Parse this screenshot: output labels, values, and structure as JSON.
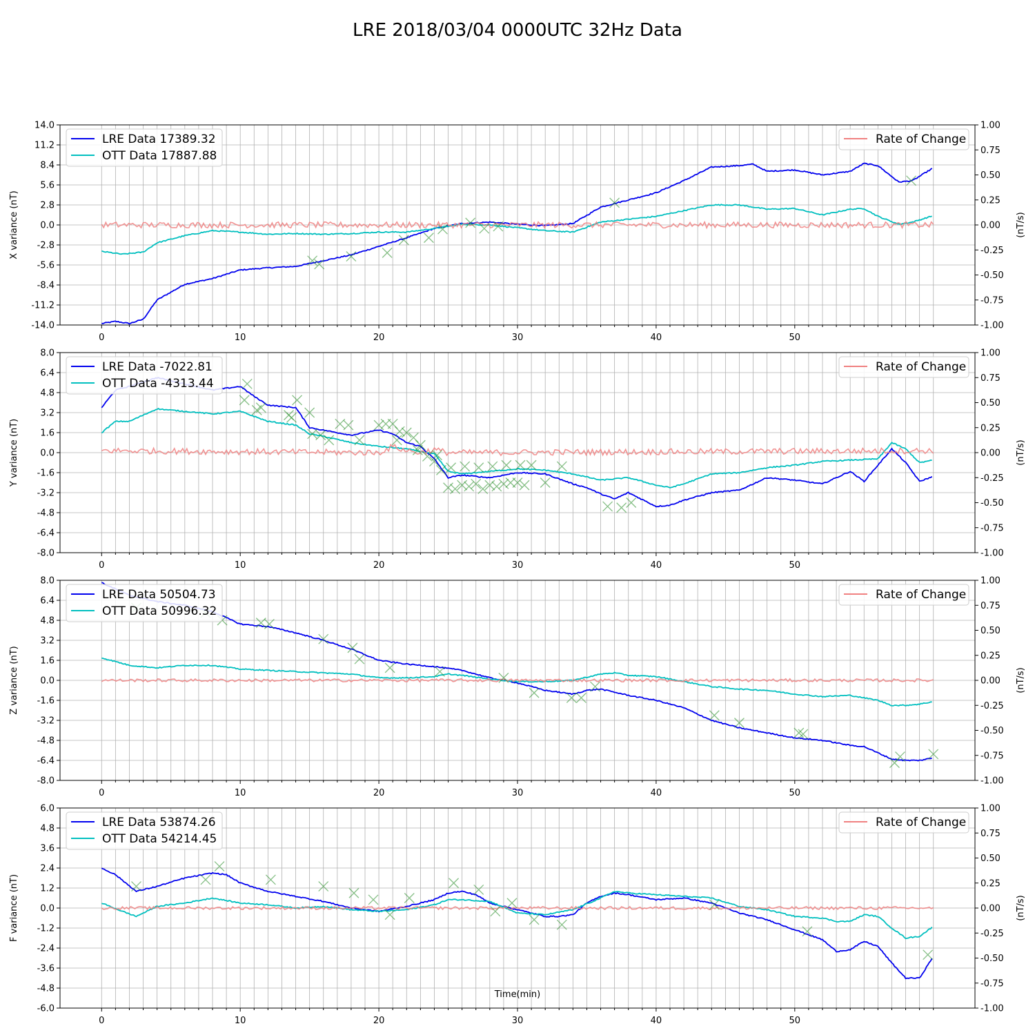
{
  "figure": {
    "title": "LRE 2018/03/04 0000UTC 32Hz Data",
    "xlabel": "Time(min)"
  },
  "chart_data": [
    {
      "type": "line",
      "ylabel": "X variance (nT)",
      "y2label": "(nT/s)",
      "xlim": [
        -3,
        63
      ],
      "xticks": [
        0,
        10,
        20,
        30,
        40,
        50
      ],
      "ylim": [
        -14.0,
        14.0
      ],
      "yticks": [
        "14.0",
        "11.2",
        "8.4",
        "5.6",
        "2.8",
        "0.0",
        "-2.8",
        "-5.6",
        "-8.4",
        "-11.2",
        "-14.0"
      ],
      "y2lim": [
        -1.0,
        1.0
      ],
      "y2ticks": [
        "1.00",
        "0.75",
        "0.50",
        "0.25",
        "0.00",
        "-0.25",
        "-0.50",
        "-0.75",
        "-1.00"
      ],
      "grid": true,
      "legend_left_position": "upper-left",
      "legend_right_position": "upper-right",
      "series": [
        {
          "name": "LRE Data 17389.32",
          "color": "#0000ee",
          "x": [
            0,
            1,
            2,
            3,
            4,
            6,
            8,
            10,
            12,
            14,
            16,
            18,
            20,
            22,
            24,
            26,
            28,
            30,
            32,
            34,
            36,
            38,
            40,
            42,
            44,
            46,
            47,
            48,
            50,
            52,
            54,
            55,
            56,
            57.5,
            58.5,
            60
          ],
          "y": [
            -13.8,
            -13.5,
            -13.8,
            -13.2,
            -10.5,
            -8.3,
            -7.5,
            -6.3,
            -6.0,
            -5.8,
            -5.0,
            -4.2,
            -3.0,
            -1.8,
            -0.5,
            0.2,
            0.4,
            0.1,
            -0.1,
            0.2,
            2.5,
            3.5,
            4.5,
            6.2,
            8.1,
            8.3,
            8.5,
            7.5,
            7.7,
            7.0,
            7.5,
            8.6,
            8.3,
            6.0,
            6.2,
            8.0
          ]
        },
        {
          "name": "OTT Data 17887.88",
          "color": "#00bfbf",
          "x": [
            0,
            1.5,
            3,
            4,
            6,
            8,
            10,
            12,
            14,
            16,
            18,
            20,
            22,
            24,
            26,
            28,
            30,
            32,
            34,
            36,
            38,
            40,
            42,
            44,
            46,
            48,
            50,
            52,
            54,
            55,
            56,
            57.5,
            58.5,
            60
          ],
          "y": [
            -3.7,
            -4.1,
            -3.8,
            -2.5,
            -1.5,
            -0.8,
            -1.0,
            -1.3,
            -1.2,
            -1.3,
            -1.2,
            -1.0,
            -1.0,
            -0.5,
            0.1,
            0.0,
            -0.4,
            -0.8,
            -1.0,
            0.4,
            0.8,
            1.2,
            2.0,
            2.8,
            2.8,
            2.2,
            2.3,
            1.4,
            2.2,
            2.3,
            1.2,
            0.1,
            0.4,
            1.3
          ]
        },
        {
          "name": "Rate of Change",
          "axis": "right",
          "color": "#f08080",
          "x": [
            0,
            60
          ],
          "y": [
            0.0,
            0.0
          ],
          "noise": 0.03
        }
      ],
      "markers": {
        "color": "#228b22",
        "x": [
          15.2,
          15.7,
          18,
          20.6,
          21.8,
          23.6,
          24.6,
          26.6,
          27.6,
          28.6,
          37,
          58.4
        ],
        "y": [
          -5.0,
          -5.5,
          -4.4,
          -3.9,
          -2.1,
          -1.8,
          -0.6,
          0.3,
          -0.5,
          -0.2,
          3.1,
          6.2
        ]
      }
    },
    {
      "type": "line",
      "ylabel": "Y variance (nT)",
      "y2label": "(nT/s)",
      "xlim": [
        -3,
        63
      ],
      "xticks": [
        0,
        10,
        20,
        30,
        40,
        50
      ],
      "ylim": [
        -8.0,
        8.0
      ],
      "yticks": [
        "8.0",
        "6.4",
        "4.8",
        "3.2",
        "1.6",
        "0.0",
        "-1.6",
        "-3.2",
        "-4.8",
        "-6.4",
        "-8.0"
      ],
      "y2lim": [
        -1.0,
        1.0
      ],
      "y2ticks": [
        "1.00",
        "0.75",
        "0.50",
        "0.25",
        "0.00",
        "-0.25",
        "-0.50",
        "-0.75",
        "-1.00"
      ],
      "grid": true,
      "legend_left_position": "upper-left",
      "legend_right_position": "upper-right",
      "series": [
        {
          "name": "LRE Data -7022.81",
          "color": "#0000ee",
          "x": [
            0,
            1,
            2,
            4,
            6,
            8,
            10,
            11,
            12,
            14,
            15,
            16,
            18,
            20,
            21,
            22,
            23,
            24,
            25,
            26,
            28,
            30,
            32,
            34,
            35,
            36,
            37,
            38,
            40,
            41,
            42,
            44,
            46,
            48,
            50,
            52,
            54,
            55,
            56,
            57,
            58,
            59,
            60
          ],
          "y": [
            3.6,
            5.0,
            5.3,
            6.0,
            5.5,
            5.0,
            5.3,
            4.5,
            3.8,
            3.6,
            2.0,
            1.8,
            1.4,
            1.8,
            1.5,
            0.8,
            0.5,
            -0.5,
            -2.0,
            -1.8,
            -2.0,
            -1.6,
            -1.7,
            -2.5,
            -2.8,
            -3.3,
            -3.7,
            -3.2,
            -4.3,
            -4.2,
            -3.8,
            -3.2,
            -3.0,
            -2.0,
            -2.2,
            -2.5,
            -1.5,
            -2.3,
            -1.0,
            0.3,
            -0.8,
            -2.3,
            -1.9
          ]
        },
        {
          "name": "OTT Data -4313.44",
          "color": "#00bfbf",
          "x": [
            0,
            1,
            2,
            3,
            4,
            6,
            8,
            10,
            11,
            12,
            14,
            15,
            16,
            18,
            20,
            22,
            24,
            25,
            26,
            28,
            30,
            32,
            34,
            36,
            38,
            40,
            41,
            42,
            44,
            46,
            48,
            50,
            52,
            54,
            56,
            57,
            58,
            59,
            60
          ],
          "y": [
            1.6,
            2.5,
            2.5,
            3.0,
            3.5,
            3.3,
            3.1,
            3.3,
            2.9,
            2.5,
            2.2,
            1.5,
            1.3,
            0.8,
            0.5,
            0.3,
            -0.1,
            -1.5,
            -1.7,
            -1.5,
            -1.3,
            -1.4,
            -1.7,
            -2.2,
            -2.0,
            -2.6,
            -2.8,
            -2.5,
            -1.7,
            -1.6,
            -1.2,
            -1.0,
            -0.7,
            -0.6,
            -0.5,
            0.8,
            0.3,
            -0.8,
            -0.6
          ]
        },
        {
          "name": "Rate of Change",
          "axis": "right",
          "color": "#f08080",
          "x": [
            0,
            20,
            21,
            22,
            23,
            24,
            25,
            26,
            60
          ],
          "y": [
            0.02,
            0.0,
            0.06,
            0.02,
            0.0,
            0.03,
            0.0,
            0.0,
            0.02
          ],
          "noise": 0.03
        }
      ],
      "markers": {
        "color": "#228b22",
        "x": [
          10.5,
          11.5,
          13.7,
          14.1,
          15.0,
          15.8,
          16.4,
          17.2,
          17.8,
          18.6,
          20.0,
          20.5,
          21.0,
          21.5,
          22.0,
          22.5,
          23.0,
          23.5,
          24.0,
          24.5,
          25.0,
          25.5,
          26.0,
          26.5,
          27.0,
          27.5,
          28.0,
          28.5,
          29.0,
          29.5,
          30.0,
          30.5,
          31.0,
          32.0,
          33.2,
          36.5,
          37.5,
          38.2,
          10.3,
          11.2,
          13.5,
          15.2,
          21.3,
          22.8,
          24.2,
          25.2,
          26.2,
          27.2,
          28.2,
          29.2,
          30.2
        ],
        "y": [
          5.5,
          3.6,
          2.8,
          4.2,
          3.2,
          1.4,
          1.0,
          2.3,
          2.2,
          1.0,
          2.2,
          2.3,
          2.3,
          1.7,
          1.6,
          1.2,
          0.6,
          -0.3,
          -0.7,
          -1.4,
          -2.8,
          -2.9,
          -2.6,
          -2.7,
          -2.5,
          -2.9,
          -2.6,
          -2.7,
          -2.5,
          -2.4,
          -2.4,
          -2.6,
          -1.0,
          -2.4,
          -1.1,
          -4.3,
          -4.4,
          -4.0,
          4.2,
          3.4,
          3.0,
          1.5,
          1.0,
          0.2,
          -0.2,
          -1.2,
          -1.1,
          -1.2,
          -1.1,
          -1.0,
          -1.0
        ]
      }
    },
    {
      "type": "line",
      "ylabel": "Z variance (nT)",
      "y2label": "(nT/s)",
      "xlim": [
        -3,
        63
      ],
      "xticks": [
        0,
        10,
        20,
        30,
        40,
        50
      ],
      "ylim": [
        -8.0,
        8.0
      ],
      "yticks": [
        "8.0",
        "6.4",
        "4.8",
        "3.2",
        "1.6",
        "0.0",
        "-1.6",
        "-3.2",
        "-4.8",
        "-6.4",
        "-8.0"
      ],
      "y2lim": [
        -1.0,
        1.0
      ],
      "y2ticks": [
        "1.00",
        "0.75",
        "0.50",
        "0.25",
        "0.00",
        "-0.25",
        "-0.50",
        "-0.75",
        "-1.00"
      ],
      "grid": true,
      "legend_left_position": "upper-left",
      "legend_right_position": "upper-right",
      "series": [
        {
          "name": "LRE Data 50504.73",
          "color": "#0000ee",
          "x": [
            0,
            2,
            4,
            6,
            8,
            10,
            12,
            14,
            16,
            18,
            20,
            22,
            24,
            26,
            28,
            30,
            32,
            34,
            35,
            36,
            38,
            40,
            42,
            44,
            46,
            48,
            50,
            52,
            54,
            55,
            56,
            57,
            58,
            59,
            60
          ],
          "y": [
            7.8,
            6.8,
            6.3,
            6.0,
            5.5,
            4.5,
            4.3,
            3.8,
            3.2,
            2.5,
            1.6,
            1.3,
            1.1,
            0.8,
            0.2,
            -0.2,
            -0.8,
            -1.1,
            -0.8,
            -0.7,
            -1.2,
            -1.6,
            -2.2,
            -3.2,
            -3.8,
            -4.2,
            -4.6,
            -4.8,
            -5.2,
            -5.3,
            -5.8,
            -6.3,
            -6.4,
            -6.4,
            -6.2
          ]
        },
        {
          "name": "OTT Data 50996.32",
          "color": "#00bfbf",
          "x": [
            0,
            2,
            4,
            6,
            8,
            10,
            12,
            14,
            16,
            18,
            20,
            22,
            24,
            25,
            26,
            28,
            30,
            32,
            34,
            36,
            37,
            38,
            40,
            42,
            44,
            46,
            48,
            50,
            52,
            54,
            56,
            57,
            58,
            59,
            60
          ],
          "y": [
            1.8,
            1.2,
            1.0,
            1.2,
            1.2,
            0.9,
            0.8,
            0.7,
            0.6,
            0.5,
            0.2,
            0.2,
            0.3,
            0.5,
            0.4,
            0.1,
            -0.1,
            -0.1,
            0.0,
            0.5,
            0.6,
            0.4,
            0.3,
            -0.1,
            -0.5,
            -0.7,
            -0.8,
            -1.1,
            -1.3,
            -1.2,
            -1.6,
            -2.0,
            -2.0,
            -1.9,
            -1.7
          ]
        },
        {
          "name": "Rate of Change",
          "axis": "right",
          "color": "#f08080",
          "x": [
            0,
            60
          ],
          "y": [
            0.0,
            0.0
          ],
          "noise": 0.015
        }
      ],
      "markers": {
        "color": "#228b22",
        "x": [
          2.5,
          7.5,
          8.7,
          11.5,
          12.1,
          16.0,
          18.1,
          18.6,
          20.8,
          24.4,
          29.0,
          31.2,
          33.9,
          34.6,
          35.6,
          44.2,
          46.0,
          50.3,
          50.6,
          57.2,
          57.6,
          60
        ],
        "y": [
          5.8,
          5.4,
          4.8,
          4.6,
          4.5,
          3.3,
          2.6,
          1.7,
          1.0,
          0.7,
          0.2,
          -1.0,
          -1.4,
          -1.4,
          -0.5,
          -2.8,
          -3.4,
          -4.2,
          -4.3,
          -6.6,
          -6.1,
          -5.9
        ]
      }
    },
    {
      "type": "line",
      "ylabel": "F variance (nT)",
      "y2label": "(nT/s)",
      "xlim": [
        -3,
        63
      ],
      "xticks": [
        0,
        10,
        20,
        30,
        40,
        50
      ],
      "ylim": [
        -6.0,
        6.0
      ],
      "yticks": [
        "6.0",
        "4.8",
        "3.6",
        "2.4",
        "1.2",
        "0.0",
        "-1.2",
        "-2.4",
        "-3.6",
        "-4.8",
        "-6.0"
      ],
      "y2lim": [
        -1.0,
        1.0
      ],
      "y2ticks": [
        "1.00",
        "0.75",
        "0.50",
        "0.25",
        "0.00",
        "-0.25",
        "-0.50",
        "-0.75",
        "-1.00"
      ],
      "grid": true,
      "legend_left_position": "upper-left",
      "legend_right_position": "upper-right",
      "series": [
        {
          "name": "LRE Data 53874.26",
          "color": "#0000ee",
          "x": [
            0,
            1,
            2.5,
            4,
            6,
            8,
            9,
            10,
            12,
            14,
            16,
            18,
            20,
            22,
            24,
            25,
            26,
            27,
            28,
            30,
            32,
            33,
            34,
            35,
            36,
            37,
            38,
            40,
            42,
            44,
            46,
            48,
            50,
            52,
            53,
            54,
            55,
            56,
            57,
            58,
            59,
            60
          ],
          "y": [
            2.4,
            2.0,
            1.0,
            1.3,
            1.8,
            2.1,
            2.0,
            1.5,
            1.0,
            0.7,
            0.4,
            0.0,
            -0.2,
            0.1,
            0.5,
            0.9,
            1.0,
            0.8,
            0.3,
            -0.1,
            -0.5,
            -0.5,
            -0.4,
            0.3,
            0.7,
            0.9,
            0.8,
            0.5,
            0.6,
            0.3,
            -0.3,
            -0.7,
            -1.3,
            -1.9,
            -2.6,
            -2.5,
            -2.0,
            -2.3,
            -3.3,
            -4.2,
            -4.2,
            -2.9
          ]
        },
        {
          "name": "OTT Data 54214.45",
          "color": "#00bfbf",
          "x": [
            0,
            1.5,
            2.5,
            4,
            6,
            8,
            10,
            12,
            14,
            16,
            18,
            20,
            22,
            24,
            25,
            26,
            28,
            30,
            32,
            34,
            36,
            37,
            38,
            40,
            42,
            44,
            46,
            48,
            50,
            52,
            53,
            54,
            55,
            56,
            57,
            58,
            59,
            60
          ],
          "y": [
            0.3,
            -0.2,
            -0.5,
            0.1,
            0.3,
            0.6,
            0.3,
            0.2,
            0.0,
            0.1,
            -0.1,
            -0.2,
            -0.1,
            0.2,
            0.5,
            0.5,
            0.4,
            -0.3,
            -0.4,
            -0.1,
            0.6,
            1.0,
            0.9,
            0.8,
            0.7,
            0.6,
            0.1,
            -0.1,
            -0.5,
            -0.6,
            -0.8,
            -0.8,
            -0.4,
            -0.5,
            -1.2,
            -1.8,
            -1.7,
            -1.1
          ]
        },
        {
          "name": "Rate of Change",
          "axis": "right",
          "color": "#f08080",
          "x": [
            0,
            60
          ],
          "y": [
            0.0,
            0.0
          ],
          "noise": 0.015
        }
      ],
      "markers": {
        "color": "#228b22",
        "x": [
          2.5,
          7.5,
          8.5,
          12.2,
          16.0,
          18.2,
          19.6,
          20.8,
          22.2,
          25.4,
          27.2,
          28.4,
          29.6,
          31.2,
          33.2,
          44.2,
          50.9,
          59.6
        ],
        "y": [
          1.3,
          1.7,
          2.5,
          1.7,
          1.3,
          0.9,
          0.5,
          -0.4,
          0.6,
          1.5,
          1.1,
          -0.2,
          0.3,
          -0.7,
          -1.0,
          0.2,
          -1.4,
          -2.8
        ]
      }
    }
  ]
}
